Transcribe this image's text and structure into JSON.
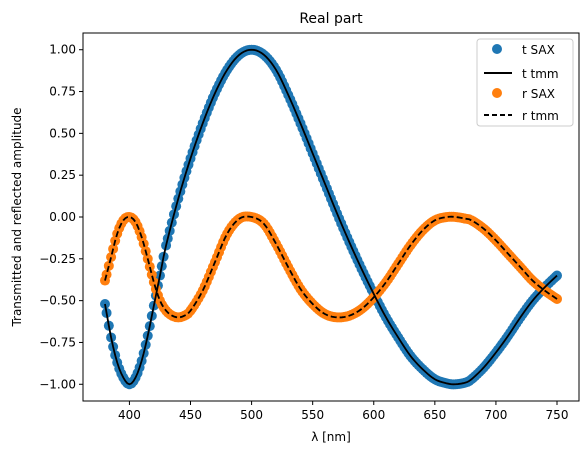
{
  "chart_data": {
    "type": "scatter",
    "title": "Real part",
    "xlabel": "λ [nm]",
    "ylabel": "Transmitted and reflected amplitude",
    "xlim": [
      362,
      768
    ],
    "ylim": [
      -1.1,
      1.1
    ],
    "xticks": [
      400,
      450,
      500,
      550,
      600,
      650,
      700,
      750
    ],
    "xtick_labels": [
      "400",
      "450",
      "500",
      "550",
      "600",
      "650",
      "700",
      "750"
    ],
    "yticks": [
      -1.0,
      -0.75,
      -0.5,
      -0.25,
      0.0,
      0.25,
      0.5,
      0.75,
      1.0
    ],
    "ytick_labels": [
      "−1.00",
      "−0.75",
      "−0.50",
      "−0.25",
      "0.00",
      "0.25",
      "0.50",
      "0.75",
      "1.00"
    ],
    "grid": false,
    "legend_position": "top-right",
    "series": [
      {
        "name": "t SAX",
        "kind": "scatter",
        "color": "#1f77b4",
        "x": [
          380,
          385,
          390,
          395,
          400,
          405,
          410,
          415,
          420,
          425,
          430,
          440,
          450,
          460,
          470,
          480,
          490,
          500,
          510,
          520,
          530,
          540,
          550,
          560,
          570,
          580,
          590,
          600,
          610,
          620,
          630,
          640,
          650,
          660,
          667,
          675,
          680,
          690,
          700,
          710,
          720,
          730,
          740,
          750
        ],
        "y": [
          -0.52,
          -0.72,
          -0.87,
          -0.96,
          -1.0,
          -0.96,
          -0.86,
          -0.71,
          -0.53,
          -0.35,
          -0.17,
          0.11,
          0.35,
          0.56,
          0.74,
          0.88,
          0.97,
          1.0,
          0.97,
          0.88,
          0.73,
          0.56,
          0.38,
          0.2,
          0.02,
          -0.15,
          -0.31,
          -0.46,
          -0.6,
          -0.72,
          -0.83,
          -0.91,
          -0.97,
          -0.995,
          -1.0,
          -0.99,
          -0.97,
          -0.9,
          -0.81,
          -0.71,
          -0.6,
          -0.5,
          -0.42,
          -0.35
        ]
      },
      {
        "name": "t tmm",
        "kind": "line",
        "color": "#000000",
        "dash": "solid",
        "x": [
          380,
          385,
          390,
          395,
          400,
          405,
          410,
          415,
          420,
          425,
          430,
          440,
          450,
          460,
          470,
          480,
          490,
          500,
          510,
          520,
          530,
          540,
          550,
          560,
          570,
          580,
          590,
          600,
          610,
          620,
          630,
          640,
          650,
          660,
          667,
          675,
          680,
          690,
          700,
          710,
          720,
          730,
          740,
          750
        ],
        "y": [
          -0.52,
          -0.72,
          -0.87,
          -0.96,
          -1.0,
          -0.96,
          -0.86,
          -0.71,
          -0.53,
          -0.35,
          -0.17,
          0.11,
          0.35,
          0.56,
          0.74,
          0.88,
          0.97,
          1.0,
          0.97,
          0.88,
          0.73,
          0.56,
          0.38,
          0.2,
          0.02,
          -0.15,
          -0.31,
          -0.46,
          -0.6,
          -0.72,
          -0.83,
          -0.91,
          -0.97,
          -0.995,
          -1.0,
          -0.99,
          -0.97,
          -0.9,
          -0.81,
          -0.71,
          -0.6,
          -0.5,
          -0.42,
          -0.35
        ]
      },
      {
        "name": "r SAX",
        "kind": "scatter",
        "color": "#ff7f0e",
        "x": [
          380,
          385,
          390,
          395,
          400,
          405,
          410,
          415,
          420,
          425,
          430,
          435,
          440,
          445,
          450,
          460,
          470,
          480,
          490,
          500,
          510,
          520,
          530,
          540,
          550,
          560,
          570,
          580,
          590,
          600,
          610,
          620,
          630,
          640,
          650,
          660,
          667,
          675,
          680,
          690,
          700,
          710,
          720,
          730,
          740,
          750
        ],
        "y": [
          -0.38,
          -0.24,
          -0.1,
          -0.02,
          0.0,
          -0.03,
          -0.12,
          -0.25,
          -0.39,
          -0.5,
          -0.56,
          -0.59,
          -0.6,
          -0.59,
          -0.56,
          -0.44,
          -0.27,
          -0.1,
          -0.01,
          0.0,
          -0.04,
          -0.16,
          -0.3,
          -0.43,
          -0.52,
          -0.58,
          -0.6,
          -0.59,
          -0.55,
          -0.48,
          -0.39,
          -0.28,
          -0.17,
          -0.08,
          -0.02,
          0.0,
          0.0,
          -0.01,
          -0.02,
          -0.07,
          -0.14,
          -0.22,
          -0.3,
          -0.38,
          -0.44,
          -0.49
        ]
      },
      {
        "name": "r tmm",
        "kind": "line",
        "color": "#000000",
        "dash": "dashed",
        "x": [
          380,
          385,
          390,
          395,
          400,
          405,
          410,
          415,
          420,
          425,
          430,
          435,
          440,
          445,
          450,
          460,
          470,
          480,
          490,
          500,
          510,
          520,
          530,
          540,
          550,
          560,
          570,
          580,
          590,
          600,
          610,
          620,
          630,
          640,
          650,
          660,
          667,
          675,
          680,
          690,
          700,
          710,
          720,
          730,
          740,
          750
        ],
        "y": [
          -0.38,
          -0.24,
          -0.1,
          -0.02,
          0.0,
          -0.03,
          -0.12,
          -0.25,
          -0.39,
          -0.5,
          -0.56,
          -0.59,
          -0.6,
          -0.59,
          -0.56,
          -0.44,
          -0.27,
          -0.1,
          -0.01,
          0.0,
          -0.04,
          -0.16,
          -0.3,
          -0.43,
          -0.52,
          -0.58,
          -0.6,
          -0.59,
          -0.55,
          -0.48,
          -0.39,
          -0.28,
          -0.17,
          -0.08,
          -0.02,
          0.0,
          0.0,
          -0.01,
          -0.02,
          -0.07,
          -0.14,
          -0.22,
          -0.3,
          -0.38,
          -0.44,
          -0.49
        ]
      }
    ]
  }
}
